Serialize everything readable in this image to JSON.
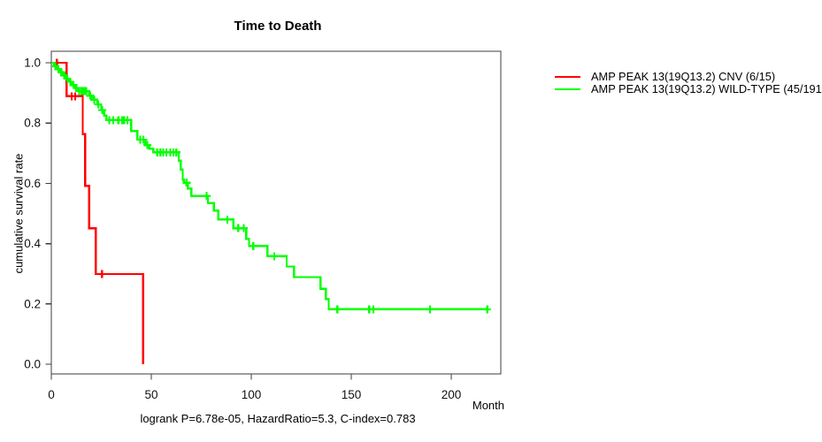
{
  "chart_data": {
    "type": "line",
    "variant": "kaplan-meier-step",
    "title": "Time to Death",
    "xlabel": "Month",
    "ylabel": "cumulative survival rate",
    "annotation": "logrank P=6.78e-05, HazardRatio=5.3, C-index=0.783",
    "xlim": [
      0,
      225
    ],
    "ylim": [
      0,
      1.0
    ],
    "xticks": [
      0,
      50,
      100,
      150,
      200
    ],
    "yticks": [
      0.0,
      0.2,
      0.4,
      0.6,
      0.8,
      1.0
    ],
    "grid": false,
    "legend_position": "outside-right-top",
    "series": [
      {
        "name": "AMP PEAK 13(19Q13.2) CNV (6/15)",
        "color": "#ff0000",
        "steps": [
          [
            0,
            1.0
          ],
          [
            7.6,
            0.889
          ],
          [
            15.7,
            0.763
          ],
          [
            16.9,
            0.592
          ],
          [
            18.9,
            0.451
          ],
          [
            22.3,
            0.299
          ],
          [
            45.9,
            0.0
          ]
        ],
        "end_month": 45.9,
        "censor_months": [
          2.8,
          10.2,
          12.0,
          25.3
        ]
      },
      {
        "name": "AMP PEAK 13(19Q13.2) WILD-TYPE (45/191",
        "color": "#00ff00",
        "steps": [
          [
            0,
            1.0
          ],
          [
            1.5,
            0.989
          ],
          [
            3,
            0.979
          ],
          [
            4.5,
            0.968
          ],
          [
            6,
            0.958
          ],
          [
            7.5,
            0.947
          ],
          [
            9,
            0.937
          ],
          [
            10.5,
            0.926
          ],
          [
            12,
            0.916
          ],
          [
            13.5,
            0.906
          ],
          [
            19,
            0.891
          ],
          [
            20.5,
            0.877
          ],
          [
            23,
            0.862
          ],
          [
            25,
            0.843
          ],
          [
            26.5,
            0.825
          ],
          [
            27.5,
            0.81
          ],
          [
            40,
            0.774
          ],
          [
            43,
            0.745
          ],
          [
            47,
            0.727
          ],
          [
            49,
            0.715
          ],
          [
            51,
            0.703
          ],
          [
            63.7,
            0.675
          ],
          [
            64.7,
            0.646
          ],
          [
            65.7,
            0.612
          ],
          [
            66.3,
            0.602
          ],
          [
            68.2,
            0.583
          ],
          [
            70,
            0.558
          ],
          [
            78.3,
            0.534
          ],
          [
            81.3,
            0.509
          ],
          [
            83.5,
            0.48
          ],
          [
            91.1,
            0.451
          ],
          [
            97.4,
            0.416
          ],
          [
            98.9,
            0.392
          ],
          [
            108.1,
            0.358
          ],
          [
            117.7,
            0.324
          ],
          [
            121.4,
            0.289
          ],
          [
            134.7,
            0.25
          ],
          [
            137.2,
            0.216
          ],
          [
            138.7,
            0.182
          ]
        ],
        "end_month": 218,
        "censor_months": [
          2,
          3.5,
          5,
          6.5,
          8,
          9.5,
          11,
          12.5,
          14,
          15,
          15.8,
          16.5,
          17.5,
          19.5,
          21.5,
          23.5,
          25.5,
          29,
          31,
          33.5,
          35.5,
          36.5,
          38,
          44.5,
          46,
          48,
          53,
          54.5,
          56,
          57.5,
          59.5,
          61,
          62.5,
          67.6,
          77.7,
          88,
          93.5,
          96.2,
          101,
          111.5,
          143,
          159,
          161,
          189.4,
          218
        ]
      }
    ]
  }
}
